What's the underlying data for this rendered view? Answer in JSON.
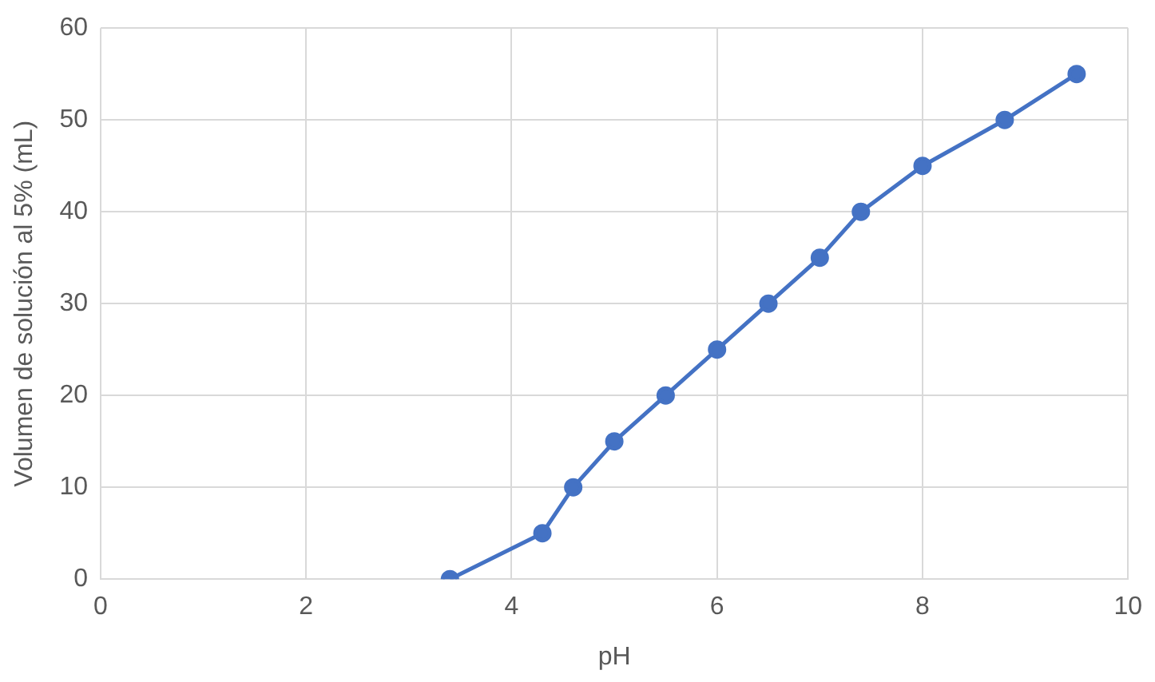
{
  "chart_data": {
    "type": "line",
    "xlabel": "pH",
    "ylabel": "Volumen de solución al 5% (mL)",
    "x": [
      3.4,
      4.3,
      4.6,
      5,
      5.5,
      6,
      6.5,
      7,
      7.4,
      8,
      8.8,
      9.5
    ],
    "series": [
      {
        "color": "#4472c4",
        "values": [
          0,
          5,
          10,
          15,
          20,
          25,
          30,
          35,
          40,
          45,
          50,
          55
        ]
      }
    ],
    "xlim": [
      0,
      10
    ],
    "xticks": [
      0,
      2,
      4,
      6,
      8,
      10
    ],
    "ylim": [
      0,
      60
    ],
    "yticks": [
      0,
      10,
      20,
      30,
      40,
      50,
      60
    ],
    "grid": true,
    "legend": false,
    "marker": "circle",
    "line_style": "solid"
  }
}
